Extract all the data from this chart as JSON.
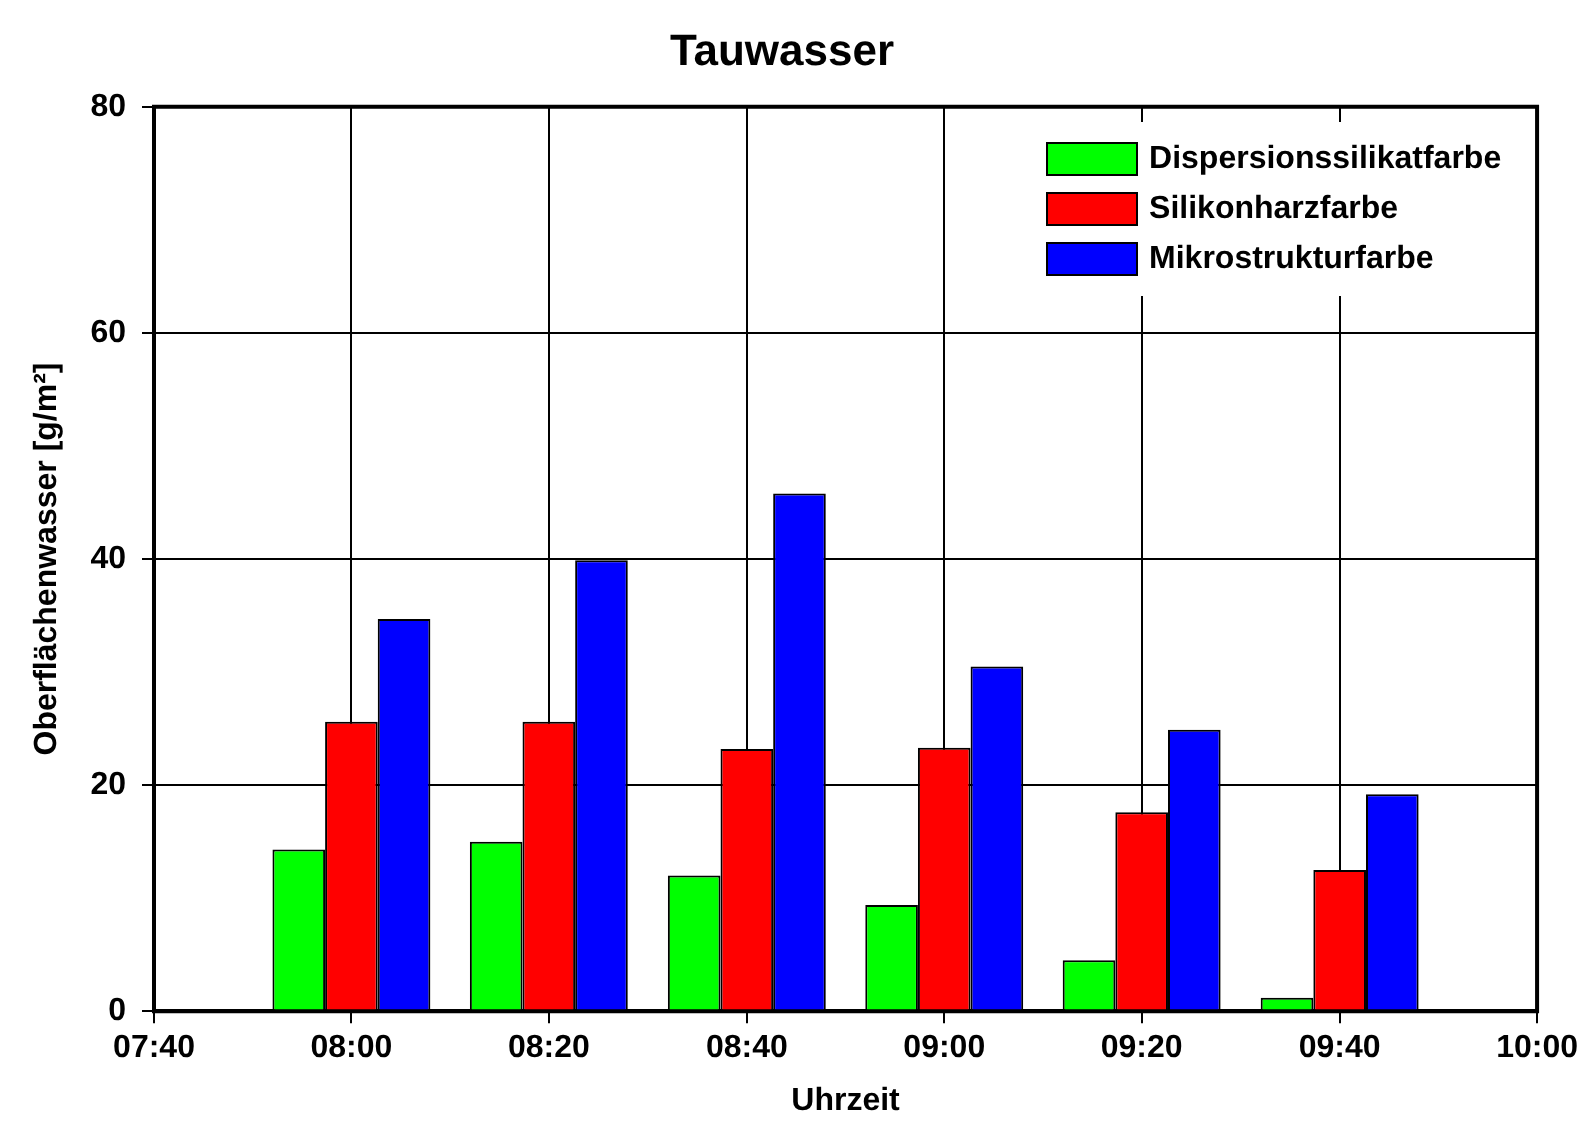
{
  "chart_data": {
    "type": "bar",
    "title": "Tauwasser",
    "xlabel": "Uhrzeit",
    "ylabel": "Oberflächenwasser [g/m²]",
    "x": [
      8,
      8.333,
      8.667,
      9,
      9.333,
      9.667
    ],
    "series": [
      {
        "name": "Dispersionssilikatfarbe",
        "color": "#00ff00",
        "values": [
          14.3,
          15.0,
          12.0,
          9.4,
          4.5,
          1.2
        ]
      },
      {
        "name": "Silikonharzfarbe",
        "color": "#ff0000",
        "values": [
          25.6,
          25.6,
          23.2,
          23.3,
          17.6,
          12.5
        ]
      },
      {
        "name": "Mikrostrukturfarbe",
        "color": "#0000ff",
        "values": [
          34.7,
          39.9,
          45.8,
          30.5,
          24.9,
          19.2
        ]
      }
    ],
    "xlim": [
      7.667,
      10
    ],
    "xticks": [
      {
        "value": 7.667,
        "label": "07:40"
      },
      {
        "value": 8,
        "label": "08:00"
      },
      {
        "value": 8.333,
        "label": "08:20"
      },
      {
        "value": 8.667,
        "label": "08:40"
      },
      {
        "value": 9,
        "label": "09:00"
      },
      {
        "value": 9.333,
        "label": "09:20"
      },
      {
        "value": 9.667,
        "label": "09:40"
      },
      {
        "value": 10,
        "label": "10:00"
      }
    ],
    "ylim": [
      0,
      80
    ],
    "yticks": [
      0,
      20,
      40,
      60,
      80
    ],
    "grid": true,
    "legend": "top right"
  }
}
